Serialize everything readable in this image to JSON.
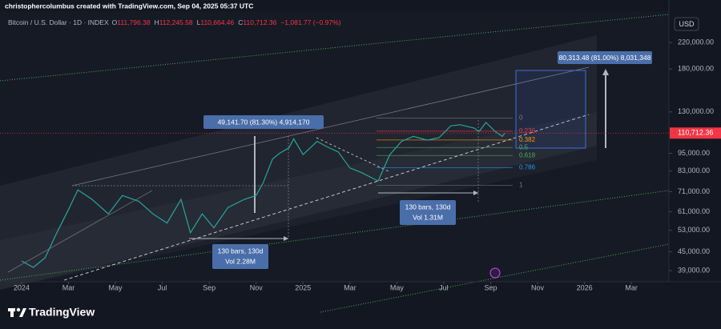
{
  "credit": "christophercolumbus created with TradingView.com, Sep 04, 2025 05:37 UTC",
  "brand": "TradingView",
  "chart_data": {
    "type": "line",
    "symbol": "Bitcoin / U.S. Dollar · 1D · INDEX",
    "ohlc": [
      {
        "key": "O",
        "value": "111,796.38"
      },
      {
        "key": "H",
        "value": "112,245.58"
      },
      {
        "key": "L",
        "value": "110,664.46"
      },
      {
        "key": "C",
        "value": "110,712.36"
      }
    ],
    "change": "−1,081.77 (−0.97%)",
    "currency": "USD",
    "log_scale": true,
    "xlim": [
      -0.92,
      27.6
    ],
    "ylim": [
      36300,
      269000
    ],
    "xticks": [
      {
        "value": 0,
        "label": "2024"
      },
      {
        "value": 2,
        "label": "Mar"
      },
      {
        "value": 4,
        "label": "May"
      },
      {
        "value": 6,
        "label": "Jul"
      },
      {
        "value": 8,
        "label": "Sep"
      },
      {
        "value": 10,
        "label": "Nov"
      },
      {
        "value": 12,
        "label": "2025"
      },
      {
        "value": 14,
        "label": "Mar"
      },
      {
        "value": 16,
        "label": "May"
      },
      {
        "value": 18,
        "label": "Jul"
      },
      {
        "value": 20,
        "label": "Sep"
      },
      {
        "value": 22,
        "label": "Nov"
      },
      {
        "value": 24,
        "label": "2026"
      },
      {
        "value": 26,
        "label": "Mar"
      }
    ],
    "yticks": [
      {
        "value": 39000,
        "label": "39,000.00"
      },
      {
        "value": 45000,
        "label": "45,000.00"
      },
      {
        "value": 53000,
        "label": "53,000.00"
      },
      {
        "value": 61000,
        "label": "61,000.00"
      },
      {
        "value": 71000,
        "label": "71,000.00"
      },
      {
        "value": 83000,
        "label": "83,000.00"
      },
      {
        "value": 95000,
        "label": "95,000.00"
      },
      {
        "value": 130000,
        "label": "130,000.00"
      },
      {
        "value": 180000,
        "label": "180,000.00"
      },
      {
        "value": 220000,
        "label": "220,000.00"
      }
    ],
    "last_price": {
      "value": 110712.36,
      "label": "110,712.36",
      "color": "#f23645"
    },
    "series": [
      {
        "name": "Bitcoin / U.S. Dollar",
        "color": "#26a69a",
        "x": [
          0,
          0.5,
          1,
          1.5,
          2,
          2.4,
          3,
          3.7,
          4.3,
          5,
          5.6,
          6.2,
          6.8,
          7.2,
          7.7,
          8.2,
          8.8,
          9.5,
          10,
          10.3,
          10.7,
          11,
          11.4,
          11.6,
          12,
          12.6,
          13,
          13.5,
          14,
          14.5,
          15.2,
          15.7,
          16.2,
          16.7,
          17.3,
          17.8,
          18.3,
          18.7,
          19.3,
          19.5,
          19.8,
          20.2,
          20.5,
          20.6
        ],
        "values": [
          42000,
          40000,
          43000,
          52000,
          62000,
          72000,
          67000,
          60000,
          69000,
          66000,
          60000,
          56000,
          67000,
          52000,
          60000,
          54000,
          63000,
          67000,
          69000,
          76000,
          91000,
          95000,
          99000,
          106000,
          94000,
          104000,
          100000,
          96000,
          85000,
          82000,
          77000,
          94000,
          104000,
          108000,
          105000,
          107000,
          117000,
          118000,
          115000,
          112000,
          120000,
          112000,
          108000,
          110712.36
        ]
      }
    ],
    "fib": {
      "from": 124000,
      "to": 74500,
      "levels": [
        0,
        0.236,
        0.382,
        0.5,
        0.618,
        0.786,
        1
      ],
      "colors": [
        "#787b86",
        "#f23645",
        "#ff9800",
        "#4caf50",
        "#4caf50",
        "#2196f3",
        "#787b86"
      ]
    },
    "annotations": {
      "measure_1": "49,141.70 (81.30%) 4,914,170",
      "bars_1": "130 bars, 130d",
      "vol_1": "Vol 2.28M",
      "bars_2": "130 bars, 130d",
      "vol_2": "Vol 1.31M",
      "measure_2": "80,313.48 (81.00%) 8,031,348"
    }
  }
}
